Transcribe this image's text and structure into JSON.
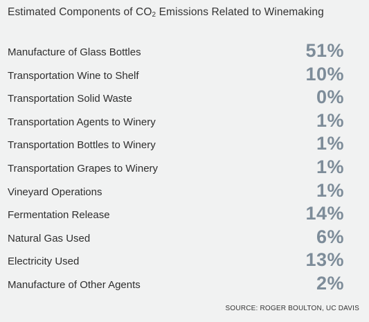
{
  "chart_data": {
    "type": "table",
    "title_main": "Estimated Components of CO",
    "title_sub": "2",
    "title_rest": " Emissions Related to Winemaking",
    "rows": [
      {
        "label": "Manufacture of Glass Bottles",
        "value": "51%"
      },
      {
        "label": "Transportation Wine to Shelf",
        "value": "10%"
      },
      {
        "label": "Transportation Solid Waste",
        "value": "0%"
      },
      {
        "label": "Transportation Agents to Winery",
        "value": "1%"
      },
      {
        "label": "Transportation Bottles to Winery",
        "value": "1%"
      },
      {
        "label": "Transportation Grapes to Winery",
        "value": "1%"
      },
      {
        "label": "Vineyard Operations",
        "value": "1%"
      },
      {
        "label": "Fermentation Release",
        "value": "14%"
      },
      {
        "label": "Natural Gas Used",
        "value": "6%"
      },
      {
        "label": "Electricity Used",
        "value": "13%"
      },
      {
        "label": "Manufacture of Other Agents",
        "value": "2%"
      }
    ],
    "source": "SOURCE: ROGER BOULTON, UC DAVIS"
  },
  "colors": {
    "background": "#f1f2f2",
    "value_text": "#7d8c99",
    "label_text": "#2e2e2e"
  }
}
